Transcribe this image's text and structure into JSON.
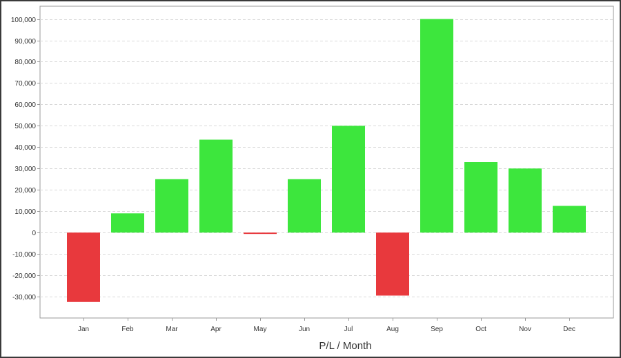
{
  "chart_data": {
    "type": "bar",
    "title": "",
    "xlabel": "P/L / Month",
    "ylabel": "",
    "categories": [
      "Jan",
      "Feb",
      "Mar",
      "Apr",
      "May",
      "Jun",
      "Jul",
      "Aug",
      "Sep",
      "Oct",
      "Nov",
      "Dec"
    ],
    "values": [
      -32500,
      9000,
      25000,
      43500,
      -500,
      25000,
      50000,
      -29500,
      100000,
      33000,
      30000,
      12500
    ],
    "ylim": [
      -40000,
      106000
    ],
    "yticks": [
      -30000,
      -20000,
      -10000,
      0,
      10000,
      20000,
      30000,
      40000,
      50000,
      60000,
      70000,
      80000,
      90000,
      100000
    ],
    "ytick_labels": [
      "-30,000",
      "-20,000",
      "-10,000",
      "0",
      "10,000",
      "20,000",
      "30,000",
      "40,000",
      "50,000",
      "60,000",
      "70,000",
      "80,000",
      "90,000",
      "100,000"
    ],
    "grid": true,
    "legend": "none",
    "colors": {
      "positive": "#3de63d",
      "negative": "#e8393d",
      "grid": "#d8d8d8",
      "axis": "#999999"
    }
  }
}
